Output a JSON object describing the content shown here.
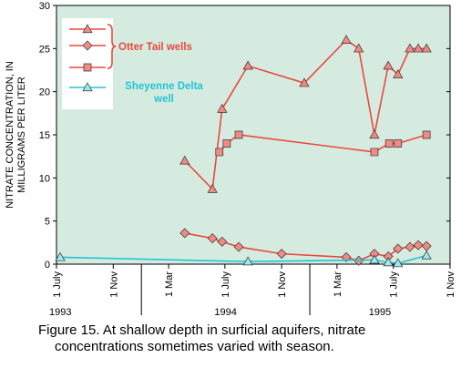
{
  "chart_data": {
    "type": "line",
    "ylabel": [
      "NITRATE CONCENTRATION, IN",
      "MILLIGRAMS PER LITER"
    ],
    "caption": "Figure 15.  At shallow depth in surficial aquifers, nitrate concentrations sometimes varied with season.",
    "xlim": [
      "1993-07-01",
      "1995-11-01"
    ],
    "xticks": [
      {
        "value": "1993-07-01",
        "label": "1 July"
      },
      {
        "value": "1993-11-01",
        "label": "1 Nov"
      },
      {
        "value": "1994-03-01",
        "label": "1 Mar"
      },
      {
        "value": "1994-07-01",
        "label": "1 July"
      },
      {
        "value": "1994-11-01",
        "label": "1 Nov"
      },
      {
        "value": "1995-03-01",
        "label": "1 Mar"
      },
      {
        "value": "1995-07-01",
        "label": "1 July"
      },
      {
        "value": "1995-11-01",
        "label": "1 Nov"
      }
    ],
    "years": [
      "1993",
      "1994",
      "1995"
    ],
    "ylim": [
      0,
      30
    ],
    "yticks": [
      0,
      5,
      10,
      15,
      20,
      25,
      30
    ],
    "series": [
      {
        "name": "Otter Tail wells",
        "color": "#e8483e",
        "marker_color": "#f28a84",
        "marker": "triangle",
        "x": [
          "1994-04-05",
          "1994-06-04",
          "1994-06-25",
          "1994-08-20",
          "1994-12-20",
          "1995-03-21",
          "1995-04-17",
          "1995-05-21",
          "1995-06-20",
          "1995-07-11",
          "1995-08-06",
          "1995-08-24",
          "1995-09-11"
        ],
        "values": [
          12,
          8.7,
          18,
          23,
          21,
          26,
          25,
          15,
          23,
          22,
          25,
          25,
          25
        ]
      },
      {
        "color": "#e8483e",
        "marker_color": "#f28a84",
        "marker": "diamond",
        "x": [
          "1994-04-05",
          "1994-06-04",
          "1994-06-25",
          "1994-07-31",
          "1994-11-01",
          "1995-03-21",
          "1995-04-17",
          "1995-05-21",
          "1995-06-20",
          "1995-07-11",
          "1995-08-06",
          "1995-08-24",
          "1995-09-11"
        ],
        "values": [
          3.6,
          3.0,
          2.6,
          2.0,
          1.2,
          0.8,
          0.4,
          1.2,
          0.9,
          1.8,
          2.0,
          2.2,
          2.1
        ]
      },
      {
        "color": "#e8483e",
        "marker_color": "#f28a84",
        "marker": "square",
        "x": [
          "1994-06-19",
          "1994-07-05",
          "1994-07-31",
          "1995-05-21",
          "1995-06-22",
          "1995-07-11",
          "1995-09-11"
        ],
        "values": [
          13,
          14,
          15,
          13,
          14,
          14,
          15
        ]
      },
      {
        "name": "Sheyenne Delta well",
        "color": "#22c4d4",
        "marker_color": "#9ee8ee",
        "marker": "triangle",
        "x": [
          "1993-07-09",
          "1994-08-20",
          "1995-05-21",
          "1995-06-20",
          "1995-07-11",
          "1995-09-11"
        ],
        "values": [
          0.8,
          0.3,
          0.5,
          0.2,
          0.1,
          1.0
        ]
      }
    ]
  }
}
